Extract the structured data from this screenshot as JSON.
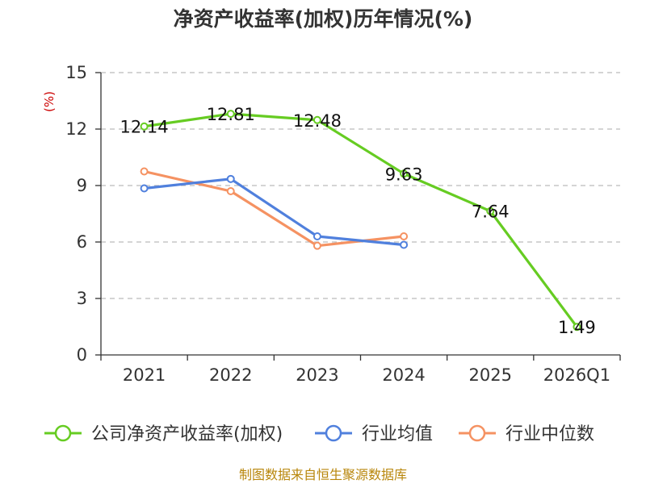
{
  "chart_data": {
    "type": "line",
    "title": "净资产收益率(加权)历年情况(%)",
    "ylabel": "(%)",
    "xlabel": "",
    "categories": [
      "2021",
      "2022",
      "2023",
      "2024",
      "2025",
      "2026Q1"
    ],
    "ylim": [
      0,
      15
    ],
    "yticks": [
      0,
      3,
      6,
      9,
      12,
      15
    ],
    "grid": "horizontal-dashed",
    "legend_position": "bottom",
    "series": [
      {
        "name": "公司净资产收益率(加权)",
        "color": "#66cc22",
        "values": [
          12.14,
          12.81,
          12.48,
          9.63,
          7.64,
          1.49
        ],
        "labels": [
          "12.14",
          "12.81",
          "12.48",
          "9.63",
          "7.64",
          "1.49"
        ]
      },
      {
        "name": "行业均值",
        "color": "#5080dd",
        "values": [
          8.85,
          9.35,
          6.3,
          5.85,
          null,
          null
        ]
      },
      {
        "name": "行业中位数",
        "color": "#f59262",
        "values": [
          9.75,
          8.7,
          5.8,
          6.3,
          null,
          null
        ]
      }
    ]
  },
  "source": "制图数据来自恒生聚源数据库"
}
